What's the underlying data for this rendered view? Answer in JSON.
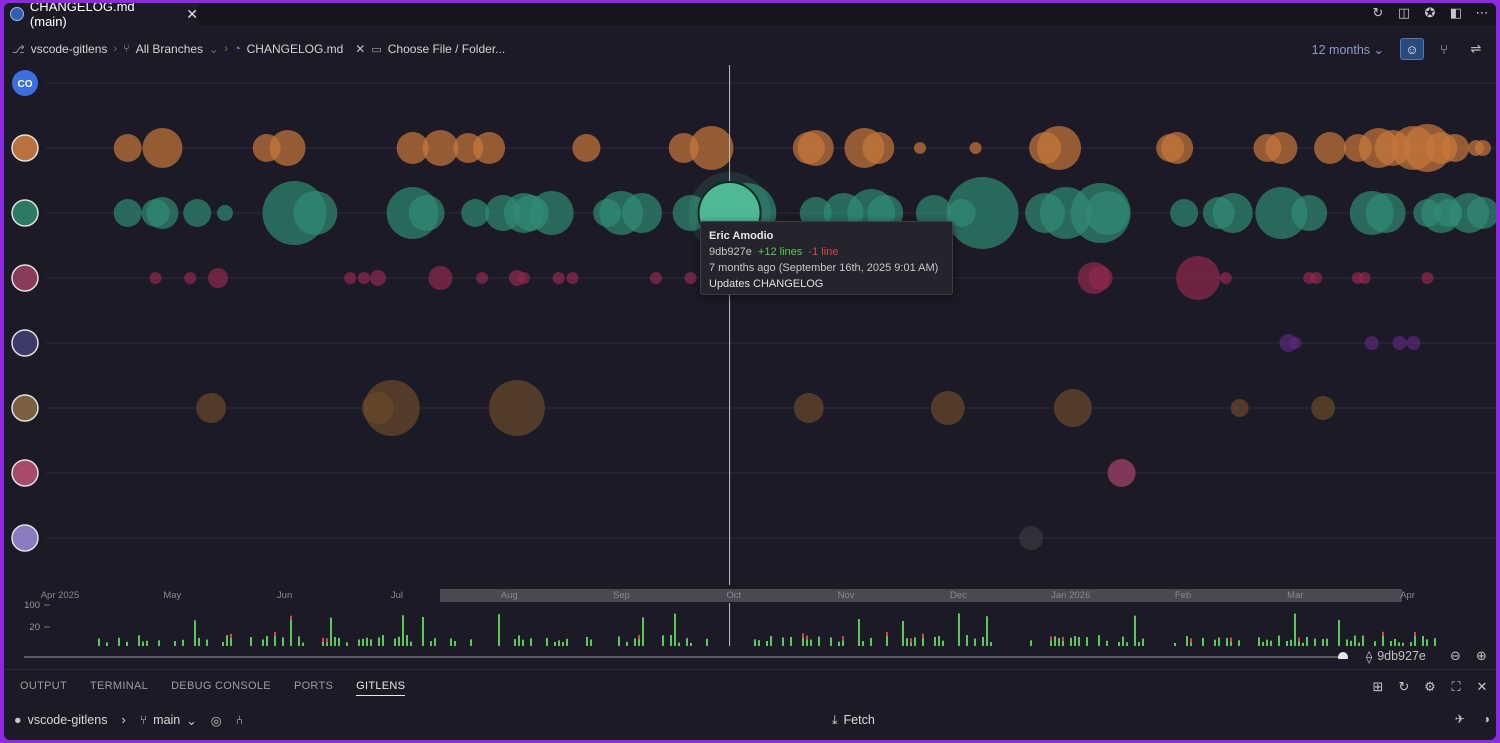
{
  "tab": {
    "title": "CHANGELOG.md (main)",
    "close": "✕"
  },
  "titlebar_icons": [
    "↻",
    "◫",
    "✪",
    "◧",
    "⋯"
  ],
  "breadcrumbs": {
    "repo": "vscode-gitlens",
    "branch": "All Branches",
    "file": "CHANGELOG.md",
    "choose": "Choose File / Folder..."
  },
  "toolbar": {
    "period": "12 months",
    "period_chevron": "⌄"
  },
  "authors": [
    {
      "initials": "CO",
      "color": "#3b6fe0"
    },
    {
      "initials": "",
      "color": "#b8713f"
    },
    {
      "initials": "",
      "color": "#2b7a63"
    },
    {
      "initials": "",
      "color": "#8a3a5a"
    },
    {
      "initials": "",
      "color": "#3d3a6a"
    },
    {
      "initials": "",
      "color": "#7a6040"
    },
    {
      "initials": "",
      "color": "#a84a6a"
    },
    {
      "initials": "",
      "color": "#8a7ac0"
    }
  ],
  "chart_data": {
    "type": "scatter",
    "description_axis": "timeline",
    "x_ticks": [
      "Apr 2025",
      "May",
      "Jun",
      "Jul",
      "Aug",
      "Sep",
      "Oct",
      "Nov",
      "Dec",
      "Jan 2026",
      "Feb",
      "Mar",
      "Apr"
    ],
    "y_ticks": [
      "100",
      "20"
    ],
    "series": [
      {
        "color": "#c8783a",
        "bubbles": [
          [
            0.03,
            14
          ],
          [
            0.055,
            20
          ],
          [
            0.13,
            14
          ],
          [
            0.145,
            18
          ],
          [
            0.235,
            16
          ],
          [
            0.255,
            18
          ],
          [
            0.275,
            15
          ],
          [
            0.29,
            16
          ],
          [
            0.36,
            14
          ],
          [
            0.43,
            15
          ],
          [
            0.45,
            22
          ],
          [
            0.52,
            16
          ],
          [
            0.525,
            18
          ],
          [
            0.56,
            20
          ],
          [
            0.57,
            16
          ],
          [
            0.6,
            6
          ],
          [
            0.64,
            6
          ],
          [
            0.69,
            16
          ],
          [
            0.7,
            22
          ],
          [
            0.78,
            14
          ],
          [
            0.785,
            16
          ],
          [
            0.85,
            14
          ],
          [
            0.86,
            16
          ],
          [
            0.895,
            16
          ],
          [
            0.915,
            14
          ],
          [
            0.93,
            20
          ],
          [
            0.94,
            18
          ],
          [
            0.955,
            22
          ],
          [
            0.965,
            24
          ],
          [
            0.975,
            16
          ],
          [
            0.985,
            14
          ],
          [
            1.0,
            8
          ],
          [
            1.005,
            8
          ],
          [
            1.03,
            10
          ]
        ]
      },
      {
        "color": "#2f8c75",
        "bubbles": [
          [
            0.03,
            14
          ],
          [
            0.05,
            14
          ],
          [
            0.055,
            16
          ],
          [
            0.08,
            14
          ],
          [
            0.1,
            8
          ],
          [
            0.15,
            32
          ],
          [
            0.165,
            22
          ],
          [
            0.235,
            26
          ],
          [
            0.245,
            18
          ],
          [
            0.28,
            14
          ],
          [
            0.3,
            18
          ],
          [
            0.315,
            20
          ],
          [
            0.32,
            18
          ],
          [
            0.335,
            22
          ],
          [
            0.375,
            14
          ],
          [
            0.385,
            22
          ],
          [
            0.4,
            20
          ],
          [
            0.435,
            18
          ],
          [
            0.475,
            30
          ],
          [
            0.525,
            16
          ],
          [
            0.545,
            20
          ],
          [
            0.565,
            24
          ],
          [
            0.575,
            18
          ],
          [
            0.61,
            18
          ],
          [
            0.63,
            14
          ],
          [
            0.645,
            36
          ],
          [
            0.69,
            20
          ],
          [
            0.705,
            26
          ],
          [
            0.73,
            30
          ],
          [
            0.735,
            22
          ],
          [
            0.79,
            14
          ],
          [
            0.815,
            16
          ],
          [
            0.825,
            20
          ],
          [
            0.86,
            26
          ],
          [
            0.88,
            18
          ],
          [
            0.925,
            22
          ],
          [
            0.935,
            20
          ],
          [
            0.965,
            14
          ],
          [
            0.975,
            20
          ],
          [
            0.98,
            14
          ],
          [
            0.995,
            20
          ],
          [
            1.005,
            16
          ]
        ]
      },
      {
        "color": "#8f2a4f",
        "bubbles": [
          [
            0.05,
            6
          ],
          [
            0.075,
            6
          ],
          [
            0.095,
            10
          ],
          [
            0.19,
            6
          ],
          [
            0.2,
            6
          ],
          [
            0.21,
            8
          ],
          [
            0.255,
            12
          ],
          [
            0.285,
            6
          ],
          [
            0.31,
            8
          ],
          [
            0.315,
            6
          ],
          [
            0.34,
            6
          ],
          [
            0.35,
            6
          ],
          [
            0.41,
            6
          ],
          [
            0.435,
            6
          ],
          [
            0.52,
            10
          ],
          [
            0.59,
            6
          ],
          [
            0.725,
            16
          ],
          [
            0.73,
            12
          ],
          [
            0.8,
            22
          ],
          [
            0.82,
            6
          ],
          [
            0.88,
            6
          ],
          [
            0.885,
            6
          ],
          [
            0.915,
            6
          ],
          [
            0.92,
            6
          ],
          [
            0.965,
            6
          ]
        ]
      },
      {
        "color": "#5a2a7a",
        "bubbles": [
          [
            0.865,
            9
          ],
          [
            0.87,
            6
          ],
          [
            0.925,
            7
          ],
          [
            0.945,
            7
          ],
          [
            0.955,
            7
          ]
        ]
      },
      {
        "color": "#6a4a2a",
        "bubbles": [
          [
            0.09,
            15
          ],
          [
            0.21,
            16
          ],
          [
            0.22,
            28
          ],
          [
            0.31,
            28
          ],
          [
            0.52,
            15
          ],
          [
            0.62,
            17
          ],
          [
            0.71,
            19
          ],
          [
            0.83,
            9
          ],
          [
            0.89,
            12
          ]
        ]
      },
      {
        "color": "#a8456a",
        "bubbles": [
          [
            0.745,
            14
          ]
        ]
      },
      {
        "color": "#3a3a40",
        "bubbles": [
          [
            0.68,
            12
          ]
        ]
      }
    ],
    "highlight": {
      "x": 0.463,
      "row": 2,
      "r": 31,
      "color": "#4fb894"
    },
    "sparkline": {
      "colors": {
        "add": "#5cc85c",
        "del": "#d04a4a"
      }
    }
  },
  "tooltip": {
    "author": "Eric Amodio",
    "sha": "9db927e",
    "added": "+12 lines",
    "removed": "-1 line",
    "date": "7 months ago (September 16th, 2025 9:01 AM)",
    "message": "Updates CHANGELOG"
  },
  "slider": {
    "sha": "9db927e"
  },
  "panel_tabs": [
    "OUTPUT",
    "TERMINAL",
    "DEBUG CONSOLE",
    "PORTS",
    "GITLENS"
  ],
  "status": {
    "repo": "vscode-gitlens",
    "branch": "main",
    "fetch": "Fetch"
  }
}
